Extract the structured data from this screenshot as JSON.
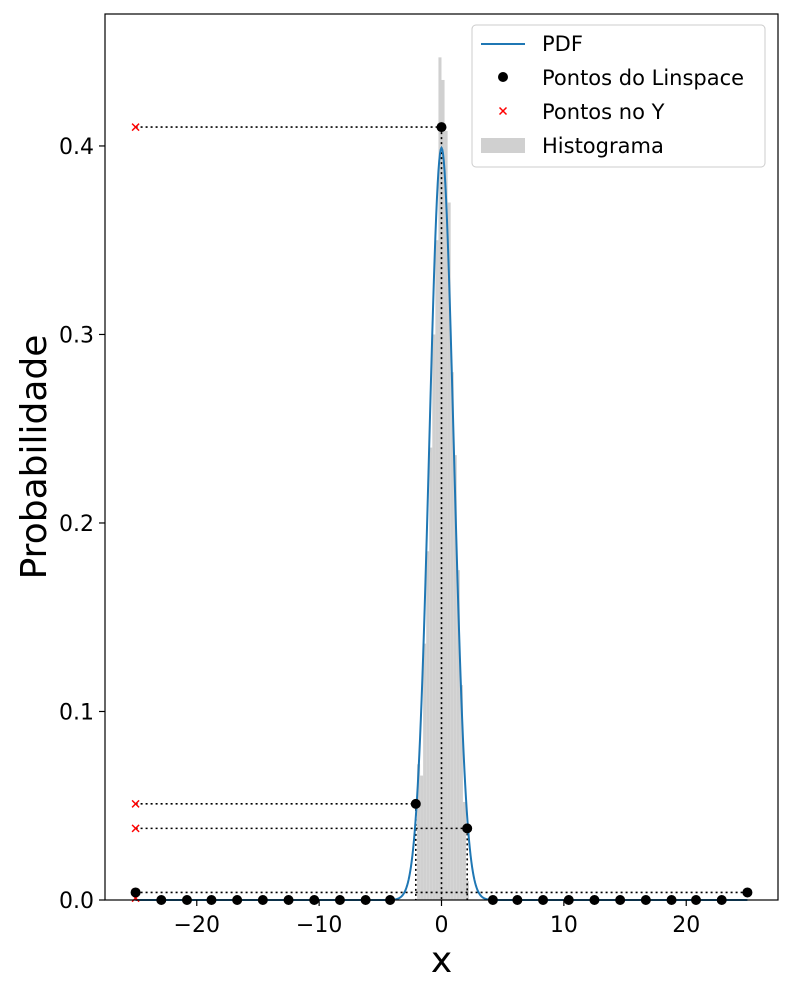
{
  "chart_data": {
    "type": "line",
    "title": "",
    "xlabel": "x",
    "ylabel": "Probabilidade",
    "xlim": [
      -27.5,
      27.5
    ],
    "ylim": [
      0.0,
      0.47
    ],
    "x_ticks": [
      -20,
      -10,
      0,
      10,
      20
    ],
    "y_ticks": [
      0.0,
      0.1,
      0.2,
      0.3,
      0.4
    ],
    "x_tick_labels": [
      "−20",
      "−10",
      "0",
      "10",
      "20"
    ],
    "y_tick_labels": [
      "0.0",
      "0.1",
      "0.2",
      "0.3",
      "0.4"
    ],
    "grid": false,
    "legend_position": "top-right",
    "legend": [
      "PDF",
      "Pontos do Linspace",
      "Pontos no Y",
      "Histograma"
    ],
    "series": [
      {
        "name": "PDF",
        "kind": "line",
        "color": "#1f77b4",
        "function": "normal",
        "mean": 0,
        "std": 1,
        "x_range": [
          -25,
          25
        ]
      },
      {
        "name": "Pontos do Linspace",
        "kind": "points",
        "color": "#000000",
        "points": [
          [
            -25,
            0.004
          ],
          [
            -22.9,
            0.0
          ],
          [
            -20.8,
            0.0
          ],
          [
            -18.8,
            0.0
          ],
          [
            -16.7,
            0.0
          ],
          [
            -14.6,
            0.0
          ],
          [
            -12.5,
            0.0
          ],
          [
            -10.4,
            0.0
          ],
          [
            -8.3,
            0.0
          ],
          [
            -6.2,
            0.0
          ],
          [
            -4.2,
            0.0
          ],
          [
            -2.1,
            0.051
          ],
          [
            0.0,
            0.41
          ],
          [
            2.1,
            0.038
          ],
          [
            4.2,
            0.0
          ],
          [
            6.2,
            0.0
          ],
          [
            8.3,
            0.0
          ],
          [
            10.4,
            0.0
          ],
          [
            12.5,
            0.0
          ],
          [
            14.6,
            0.0
          ],
          [
            16.7,
            0.0
          ],
          [
            18.8,
            0.0
          ],
          [
            20.8,
            0.0
          ],
          [
            22.9,
            0.0
          ],
          [
            25,
            0.004
          ]
        ]
      },
      {
        "name": "Pontos no Y",
        "kind": "points",
        "color": "#ff0000",
        "x": -25,
        "values": [
          0.41,
          0.051,
          0.038,
          0.004,
          0.001
        ]
      },
      {
        "name": "Histograma",
        "kind": "histogram",
        "color": "#d0d0d0",
        "bin_width": 0.25,
        "bins": [
          [
            -2.0,
            0.072
          ],
          [
            -1.75,
            0.066
          ],
          [
            -1.5,
            0.136
          ],
          [
            -1.25,
            0.185
          ],
          [
            -1.0,
            0.24
          ],
          [
            -0.75,
            0.3
          ],
          [
            -0.5,
            0.35
          ],
          [
            -0.25,
            0.447
          ],
          [
            0.0,
            0.435
          ],
          [
            0.25,
            0.408
          ],
          [
            0.5,
            0.37
          ],
          [
            0.75,
            0.28
          ],
          [
            1.0,
            0.236
          ],
          [
            1.25,
            0.175
          ],
          [
            1.5,
            0.114
          ],
          [
            1.75,
            0.052
          ],
          [
            2.0,
            0.01
          ]
        ]
      }
    ],
    "guides": [
      {
        "y": 0.41,
        "from_x": -25,
        "to_x": 0.0
      },
      {
        "y": 0.051,
        "from_x": -25,
        "to_x": -2.1
      },
      {
        "y": 0.038,
        "from_x": -25,
        "to_x": 2.1
      },
      {
        "y": 0.004,
        "from_x": -25,
        "to_x": 25
      }
    ],
    "vertical_guides": [
      {
        "x": 0.0,
        "to_y": 0.41
      },
      {
        "x": -2.1,
        "to_y": 0.051
      },
      {
        "x": 2.1,
        "to_y": 0.038
      }
    ]
  }
}
